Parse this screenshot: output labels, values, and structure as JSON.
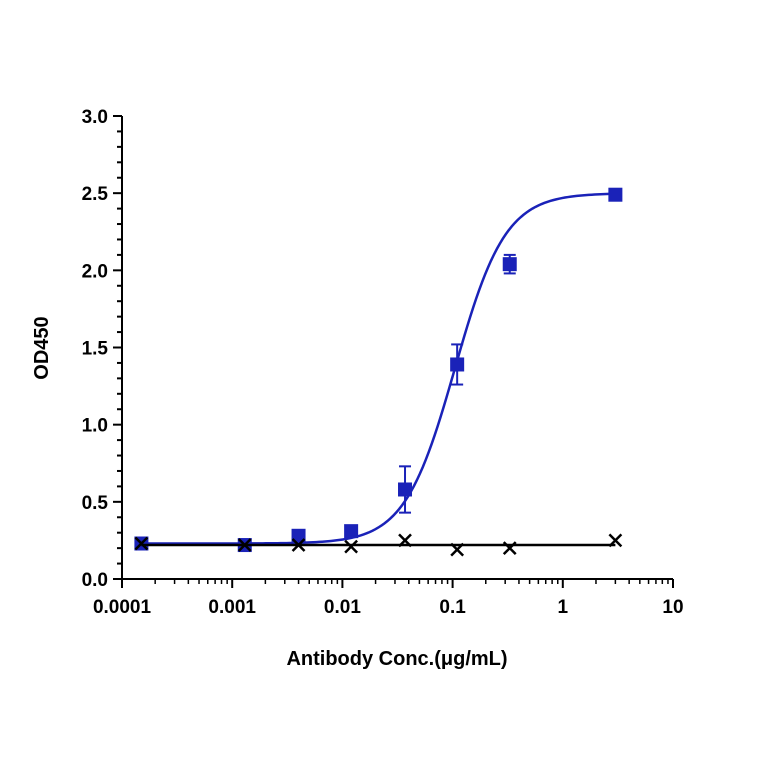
{
  "chart_data": {
    "type": "scatter",
    "xlabel": "Antibody Conc.(μg/mL)",
    "ylabel": "OD450",
    "x_scale": "log",
    "xlim": [
      0.0001,
      10
    ],
    "ylim": [
      0,
      3.0
    ],
    "x_ticks": [
      0.0001,
      0.001,
      0.01,
      0.1,
      1,
      10
    ],
    "x_tick_labels": [
      "0.0001",
      "0.001",
      "0.01",
      "0.1",
      "1",
      "10"
    ],
    "y_ticks": [
      0,
      0.5,
      1.0,
      1.5,
      2.0,
      2.5,
      3.0
    ],
    "y_tick_labels": [
      "0.0",
      "0.5",
      "1.0",
      "1.5",
      "2.0",
      "2.5",
      "3.0"
    ],
    "grid": false,
    "series": [
      {
        "color": "#1a22b8",
        "marker": "square",
        "x": [
          0.00015,
          0.0013,
          0.004,
          0.012,
          0.037,
          0.11,
          0.33,
          3.0
        ],
        "y": [
          0.23,
          0.22,
          0.28,
          0.31,
          0.58,
          1.39,
          2.04,
          2.49
        ],
        "err": [
          0,
          0,
          0,
          0,
          0.15,
          0.13,
          0.06,
          0
        ],
        "fit": {
          "bottom": 0.23,
          "top": 2.5,
          "ec50": 0.105,
          "hill": 1.9
        }
      },
      {
        "color": "#000000",
        "marker": "cross",
        "x": [
          0.00015,
          0.0013,
          0.004,
          0.012,
          0.037,
          0.11,
          0.33,
          3.0
        ],
        "y": [
          0.23,
          0.22,
          0.22,
          0.21,
          0.25,
          0.19,
          0.2,
          0.25
        ],
        "fit_level": 0.22
      }
    ]
  }
}
